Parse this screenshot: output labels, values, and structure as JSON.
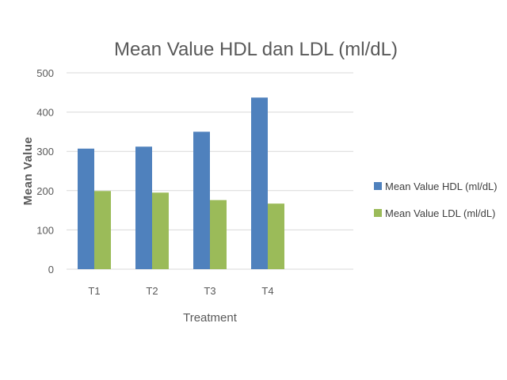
{
  "chart_data": {
    "type": "bar",
    "title": "Mean Value HDL dan LDL (ml/dL)",
    "xlabel": "Treatment",
    "ylabel": "Mean Value",
    "categories": [
      "T1",
      "T2",
      "T3",
      "T4"
    ],
    "series": [
      {
        "name": "Mean Value HDL  (ml/dL)",
        "color": "#4f81bd",
        "values": [
          307,
          312,
          350,
          437
        ]
      },
      {
        "name": "Mean Value LDL (ml/dL)",
        "color": "#9bbb59",
        "values": [
          199,
          195,
          176,
          167
        ]
      }
    ],
    "ylim": [
      0,
      500
    ],
    "yticks": [
      "0",
      "100",
      "200",
      "300",
      "400",
      "500"
    ],
    "grid": true,
    "legend": "right"
  }
}
